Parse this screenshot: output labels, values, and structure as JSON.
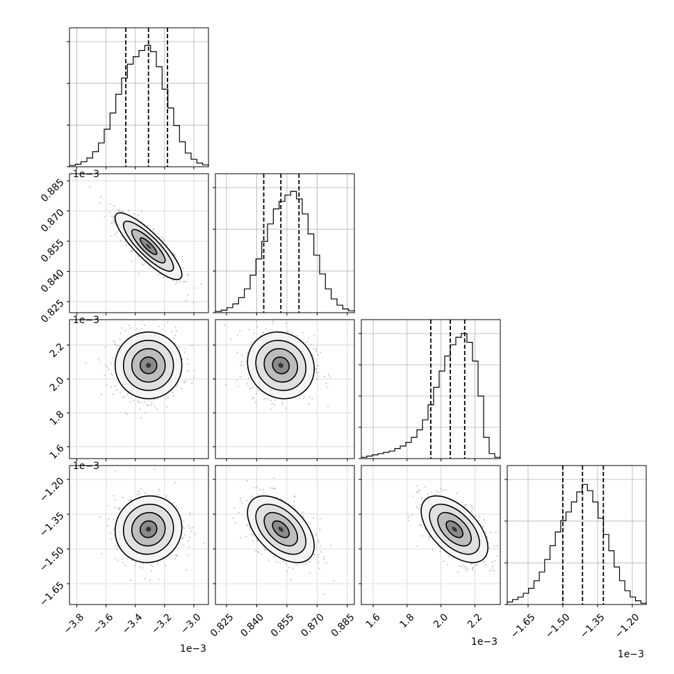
{
  "chart_data": {
    "type": "corner",
    "title": "",
    "parameters": [
      {
        "range": [
          -3.85,
          -2.9
        ],
        "ticks": [
          -3.8,
          -3.6,
          -3.4,
          -3.2,
          -3.0
        ],
        "tick_labels": [
          "−3.8",
          "−3.6",
          "−3.4",
          "−3.2",
          "−3.0"
        ],
        "offset_label": "1e−3",
        "quantiles": [
          -3.465,
          -3.31,
          -3.18
        ],
        "hist_ticks": [
          0.0,
          0.333,
          0.667,
          1.0
        ]
      },
      {
        "range": [
          0.8195,
          0.8885
        ],
        "ticks": [
          0.825,
          0.84,
          0.855,
          0.87,
          0.885
        ],
        "tick_labels": [
          "0.825",
          "0.840",
          "0.855",
          "0.870",
          "0.885"
        ],
        "offset_label": "1e−3",
        "quantiles": [
          0.8435,
          0.852,
          0.861
        ],
        "hist_ticks": [
          0.0,
          0.333,
          0.667,
          1.0
        ]
      },
      {
        "range": [
          1.53,
          2.35
        ],
        "ticks": [
          1.6,
          1.8,
          2.0,
          2.2
        ],
        "tick_labels": [
          "1.6",
          "1.8",
          "2.0",
          "2.2"
        ],
        "offset_label": "1e−3",
        "quantiles": [
          1.94,
          2.055,
          2.14
        ],
        "hist_ticks": [
          0.0,
          0.25,
          0.5,
          0.75,
          1.0
        ]
      },
      {
        "range": [
          -1.74,
          -1.14
        ],
        "ticks": [
          -1.65,
          -1.5,
          -1.35,
          -1.2
        ],
        "tick_labels": [
          "−1.65",
          "−1.50",
          "−1.35",
          "−1.20"
        ],
        "offset_label": "1e−3",
        "quantiles": [
          -1.5,
          -1.415,
          -1.325
        ],
        "hist_ticks": [
          0.0,
          0.333,
          0.667,
          1.0
        ]
      }
    ],
    "histograms": [
      [
        0.01,
        0.02,
        0.04,
        0.07,
        0.12,
        0.19,
        0.3,
        0.43,
        0.58,
        0.71,
        0.82,
        0.88,
        0.93,
        0.97,
        0.92,
        0.8,
        0.62,
        0.47,
        0.33,
        0.2,
        0.11,
        0.06,
        0.03,
        0.015
      ],
      [
        0.01,
        0.02,
        0.04,
        0.07,
        0.12,
        0.19,
        0.3,
        0.43,
        0.57,
        0.71,
        0.83,
        0.89,
        0.94,
        0.97,
        0.91,
        0.79,
        0.63,
        0.46,
        0.31,
        0.19,
        0.11,
        0.06,
        0.03,
        0.015
      ],
      [
        0.01,
        0.02,
        0.03,
        0.04,
        0.05,
        0.06,
        0.08,
        0.1,
        0.13,
        0.17,
        0.23,
        0.31,
        0.43,
        0.57,
        0.7,
        0.82,
        0.91,
        0.97,
        1.0,
        0.93,
        0.78,
        0.5,
        0.17,
        0.04,
        0.01
      ],
      [
        0.02,
        0.04,
        0.06,
        0.09,
        0.13,
        0.19,
        0.26,
        0.36,
        0.47,
        0.58,
        0.67,
        0.74,
        0.82,
        0.9,
        0.96,
        0.91,
        0.82,
        0.69,
        0.56,
        0.43,
        0.3,
        0.19,
        0.11,
        0.06,
        0.03,
        0.01
      ]
    ],
    "contour_pairs": [
      {
        "x": 0,
        "y": 1,
        "peak": [
          -3.31,
          0.8525
        ],
        "corr": -0.85
      },
      {
        "x": 0,
        "y": 2,
        "peak": [
          -3.31,
          2.08
        ],
        "corr": 0.0
      },
      {
        "x": 1,
        "y": 2,
        "peak": [
          0.852,
          2.08
        ],
        "corr": -0.1
      },
      {
        "x": 0,
        "y": 3,
        "peak": [
          -3.31,
          -1.415
        ],
        "corr": 0.05
      },
      {
        "x": 1,
        "y": 3,
        "peak": [
          0.852,
          -1.415
        ],
        "corr": -0.5
      },
      {
        "x": 2,
        "y": 3,
        "peak": [
          2.08,
          -1.415
        ],
        "corr": -0.55
      }
    ],
    "grid": true
  }
}
